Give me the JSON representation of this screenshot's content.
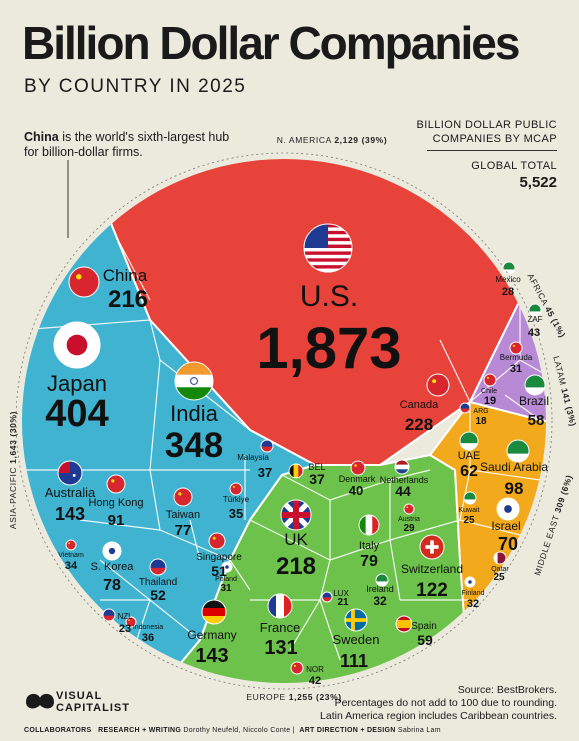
{
  "header": {
    "title": "Billion Dollar Companies",
    "subtitle": "BY COUNTRY IN 2025"
  },
  "annotation": {
    "bold": "China",
    "rest": " is the world's sixth-largest hub for billion-dollar firms."
  },
  "legend": {
    "line1": "BILLION DOLLAR PUBLIC",
    "line2": "COMPANIES BY MCAP",
    "total_label": "GLOBAL TOTAL",
    "total_value": "5,522"
  },
  "footer": {
    "brand_line1": "VISUAL",
    "brand_line2": "CAPITALIST",
    "source1": "Source: BestBrokers.",
    "source2": "Percentages do not add to 100 due to rounding.",
    "source3": "Latin America region includes Caribbean countries.",
    "collab_label": "COLLABORATORS",
    "collab_rw_label": "RESEARCH + WRITING",
    "collab_rw": "Dorothy Neufeld, Niccolo Conte",
    "collab_ad_label": "ART DIRECTION + DESIGN",
    "collab_ad": "Sabrina Lam"
  },
  "colors": {
    "background": "#ece9dd",
    "n_america": "#e8433a",
    "asia_pacific": "#3fb3cf",
    "europe": "#6cc24a",
    "middle_east": "#f2a91c",
    "latam": "#b88ad6",
    "africa": "#b98a5e",
    "cell_line": "#ffffff"
  },
  "chart_data": {
    "type": "voronoi-treemap",
    "total": 5522,
    "regions": [
      {
        "name": "N. AMERICA",
        "label_value": "2,129 (39%)",
        "value": 2129
      },
      {
        "name": "ASIA-PACIFIC",
        "label_value": "1,643 (30%)",
        "value": 1643
      },
      {
        "name": "EUROPE",
        "label_value": "1,255 (23%)",
        "value": 1255
      },
      {
        "name": "MIDDLE EAST",
        "label_value": "309 (6%)",
        "value": 309
      },
      {
        "name": "LATAM",
        "label_value": "141 (3%)",
        "value": 141
      },
      {
        "name": "AFRICA",
        "label_value": "45 (1%)",
        "value": 45
      }
    ],
    "countries": [
      {
        "name": "U.S.",
        "value_label": "1,873",
        "value": 1873,
        "region": "N. AMERICA"
      },
      {
        "name": "Canada",
        "value_label": "228",
        "value": 228,
        "region": "N. AMERICA"
      },
      {
        "name": "Mexico",
        "value_label": "28",
        "value": 28,
        "region": "N. AMERICA"
      },
      {
        "name": "China",
        "value_label": "216",
        "value": 216,
        "region": "ASIA-PACIFIC"
      },
      {
        "name": "Japan",
        "value_label": "404",
        "value": 404,
        "region": "ASIA-PACIFIC"
      },
      {
        "name": "India",
        "value_label": "348",
        "value": 348,
        "region": "ASIA-PACIFIC"
      },
      {
        "name": "Australia",
        "value_label": "143",
        "value": 143,
        "region": "ASIA-PACIFIC"
      },
      {
        "name": "Hong Kong",
        "value_label": "91",
        "value": 91,
        "region": "ASIA-PACIFIC"
      },
      {
        "name": "Taiwan",
        "value_label": "77",
        "value": 77,
        "region": "ASIA-PACIFIC"
      },
      {
        "name": "Malaysia",
        "value_label": "37",
        "value": 37,
        "region": "ASIA-PACIFIC"
      },
      {
        "name": "Singapore",
        "value_label": "51",
        "value": 51,
        "region": "ASIA-PACIFIC"
      },
      {
        "name": "S. Korea",
        "value_label": "78",
        "value": 78,
        "region": "ASIA-PACIFIC"
      },
      {
        "name": "Thailand",
        "value_label": "52",
        "value": 52,
        "region": "ASIA-PACIFIC"
      },
      {
        "name": "Vietnam",
        "value_label": "34",
        "value": 34,
        "region": "ASIA-PACIFIC"
      },
      {
        "name": "NZL",
        "value_label": "23",
        "value": 23,
        "region": "ASIA-PACIFIC"
      },
      {
        "name": "Indonesia",
        "value_label": "36",
        "value": 36,
        "region": "ASIA-PACIFIC"
      },
      {
        "name": "UK",
        "value_label": "218",
        "value": 218,
        "region": "EUROPE"
      },
      {
        "name": "Germany",
        "value_label": "143",
        "value": 143,
        "region": "EUROPE"
      },
      {
        "name": "France",
        "value_label": "131",
        "value": 131,
        "region": "EUROPE"
      },
      {
        "name": "Switzerland",
        "value_label": "122",
        "value": 122,
        "region": "EUROPE"
      },
      {
        "name": "Sweden",
        "value_label": "111",
        "value": 111,
        "region": "EUROPE"
      },
      {
        "name": "Italy",
        "value_label": "79",
        "value": 79,
        "region": "EUROPE"
      },
      {
        "name": "Spain",
        "value_label": "59",
        "value": 59,
        "region": "EUROPE"
      },
      {
        "name": "Netherlands",
        "value_label": "44",
        "value": 44,
        "region": "EUROPE"
      },
      {
        "name": "NOR",
        "value_label": "42",
        "value": 42,
        "region": "EUROPE"
      },
      {
        "name": "Denmark",
        "value_label": "40",
        "value": 40,
        "region": "EUROPE"
      },
      {
        "name": "BEL",
        "value_label": "37",
        "value": 37,
        "region": "EUROPE"
      },
      {
        "name": "Türkiye",
        "value_label": "35",
        "value": 35,
        "region": "EUROPE"
      },
      {
        "name": "Ireland",
        "value_label": "32",
        "value": 32,
        "region": "EUROPE"
      },
      {
        "name": "Finland",
        "value_label": "32",
        "value": 32,
        "region": "EUROPE"
      },
      {
        "name": "Poland",
        "value_label": "31",
        "value": 31,
        "region": "EUROPE"
      },
      {
        "name": "Austria",
        "value_label": "29",
        "value": 29,
        "region": "EUROPE"
      },
      {
        "name": "LUX",
        "value_label": "21",
        "value": 21,
        "region": "EUROPE"
      },
      {
        "name": "Saudi Arabia",
        "value_label": "98",
        "value": 98,
        "region": "MIDDLE EAST"
      },
      {
        "name": "Israel",
        "value_label": "70",
        "value": 70,
        "region": "MIDDLE EAST"
      },
      {
        "name": "UAE",
        "value_label": "62",
        "value": 62,
        "region": "MIDDLE EAST"
      },
      {
        "name": "Kuwait",
        "value_label": "25",
        "value": 25,
        "region": "MIDDLE EAST"
      },
      {
        "name": "Qatar",
        "value_label": "25",
        "value": 25,
        "region": "MIDDLE EAST"
      },
      {
        "name": "Brazil",
        "value_label": "58",
        "value": 58,
        "region": "LATAM"
      },
      {
        "name": "Bermuda",
        "value_label": "31",
        "value": 31,
        "region": "LATAM"
      },
      {
        "name": "Chile",
        "value_label": "19",
        "value": 19,
        "region": "LATAM"
      },
      {
        "name": "ARG",
        "value_label": "18",
        "value": 18,
        "region": "LATAM"
      },
      {
        "name": "ZAF",
        "value_label": "43",
        "value": 43,
        "region": "AFRICA"
      }
    ]
  }
}
